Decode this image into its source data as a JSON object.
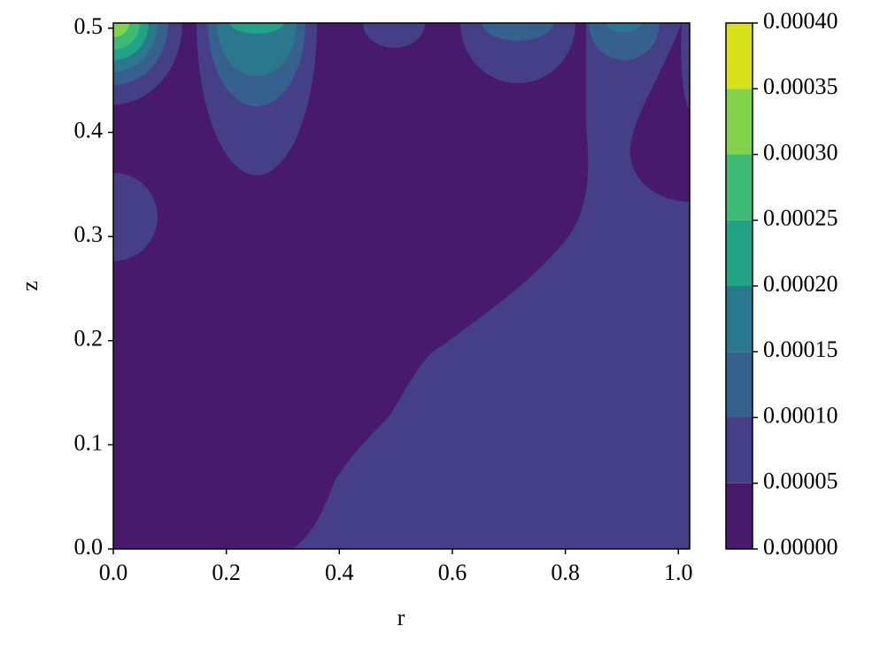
{
  "chart_data": {
    "type": "contourf",
    "x_label": "r",
    "y_label": "z",
    "xlim": [
      0,
      1.02
    ],
    "ylim": [
      0,
      0.505
    ],
    "xticks": [
      {
        "value": 0,
        "label": "0.0"
      },
      {
        "value": 0.2,
        "label": "0.2"
      },
      {
        "value": 0.4,
        "label": "0.4"
      },
      {
        "value": 0.6,
        "label": "0.6"
      },
      {
        "value": 0.8,
        "label": "0.8"
      },
      {
        "value": 1.0,
        "label": "1.0"
      }
    ],
    "yticks": [
      {
        "value": 0,
        "label": "0.0"
      },
      {
        "value": 0.1,
        "label": "0.1"
      },
      {
        "value": 0.2,
        "label": "0.2"
      },
      {
        "value": 0.3,
        "label": "0.3"
      },
      {
        "value": 0.4,
        "label": "0.4"
      },
      {
        "value": 0.5,
        "label": "0.5"
      }
    ],
    "levels": [
      0,
      5e-05,
      0.0001,
      0.00015,
      0.0002,
      0.00025,
      0.0003,
      0.00035,
      0.0004
    ],
    "colors": [
      "#481a6c",
      "#443f86",
      "#36608d",
      "#2a788e",
      "#21a386",
      "#3dbb74",
      "#84d44b",
      "#d8e219"
    ],
    "clim": [
      0,
      0.0004
    ],
    "cticks": [
      {
        "value": 0,
        "label": "0.00000"
      },
      {
        "value": 5e-05,
        "label": "0.00005"
      },
      {
        "value": 0.0001,
        "label": "0.00010"
      },
      {
        "value": 0.00015,
        "label": "0.00015"
      },
      {
        "value": 0.0002,
        "label": "0.00020"
      },
      {
        "value": 0.00025,
        "label": "0.00025"
      },
      {
        "value": 0.0003,
        "label": "0.00030"
      },
      {
        "value": 0.00035,
        "label": "0.00035"
      },
      {
        "value": 0.0004,
        "label": "0.00040"
      }
    ]
  }
}
